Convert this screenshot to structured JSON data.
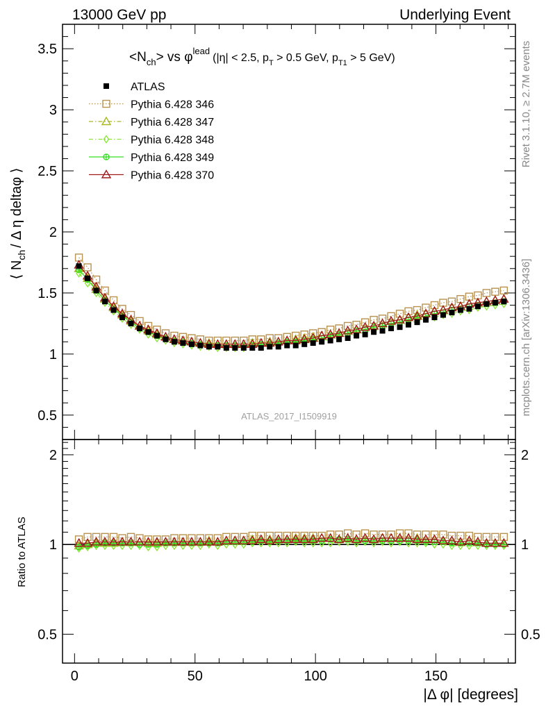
{
  "header": {
    "left": "13000 GeV pp",
    "right": "Underlying Event"
  },
  "side_labels": {
    "rivet": "Rivet 3.1.10, ≥ 2.7M events",
    "mcplots": "mcplots.cern.ch [arXiv:1306.3436]"
  },
  "colors": {
    "ATLAS": "#000000",
    "Pythia 6.428 346": "#b8924e",
    "Pythia 6.428 347": "#a8b820",
    "Pythia 6.428 348": "#8fe63a",
    "Pythia 6.428 349": "#33dd22",
    "Pythia 6.428 370": "#a01a1a"
  },
  "chart_data": {
    "type": "scatter",
    "title_parts": {
      "main": "<N",
      "main_sub": "ch",
      "vs": "> vs φ",
      "vs_sup": "lead",
      "cuts_1": "(|η| < 2.5, p",
      "cuts_1_sub": "T",
      "cuts_2": " > 0.5 GeV, p",
      "cuts_2_sub": "T1",
      "cuts_3": " > 5 GeV)"
    },
    "watermark": "ATLAS_2017_I1509919",
    "xlabel": "|Δ φ| [degrees]",
    "ylabel_parts": {
      "a": "⟨ N",
      "a_sub": "ch",
      "b": "/ Δ η deltaφ ⟩"
    },
    "ratio_ylabel": "Ratio to ATLAS",
    "xlim": [
      -5,
      183
    ],
    "ylim": [
      0.3,
      3.7
    ],
    "ratio_ylim": [
      0.4,
      2.25
    ],
    "x_ticks": [
      "0",
      "50",
      "100",
      "150"
    ],
    "y_ticks": [
      "0.5",
      "1",
      "1.5",
      "2",
      "2.5",
      "3",
      "3.5"
    ],
    "ratio_ticks": [
      "0.5",
      "1",
      "2"
    ],
    "legend": [
      {
        "name": "ATLAS",
        "marker": "square-filled",
        "line": "none"
      },
      {
        "name": "Pythia 6.428 346",
        "marker": "square-open",
        "line": "dotted"
      },
      {
        "name": "Pythia 6.428 347",
        "marker": "triangle-open",
        "line": "dashdot"
      },
      {
        "name": "Pythia 6.428 348",
        "marker": "diamond-open",
        "line": "dashdot"
      },
      {
        "name": "Pythia 6.428 349",
        "marker": "cross-circle",
        "line": "solid"
      },
      {
        "name": "Pythia 6.428 370",
        "marker": "triangle-open",
        "line": "solid"
      }
    ],
    "x": [
      1.8,
      5.4,
      9.0,
      12.6,
      16.2,
      19.8,
      23.4,
      27.0,
      30.6,
      34.2,
      37.8,
      41.4,
      45.0,
      48.6,
      52.2,
      55.8,
      59.4,
      63.0,
      66.6,
      70.2,
      73.8,
      77.4,
      81.0,
      84.6,
      88.2,
      91.8,
      95.4,
      99.0,
      102.6,
      106.2,
      109.8,
      113.4,
      117.0,
      120.6,
      124.2,
      127.8,
      131.4,
      135.0,
      138.6,
      142.2,
      145.8,
      149.4,
      153.0,
      156.6,
      160.2,
      163.8,
      167.4,
      171.0,
      174.6,
      178.2
    ],
    "series": [
      {
        "name": "ATLAS",
        "values": [
          1.72,
          1.62,
          1.52,
          1.43,
          1.36,
          1.3,
          1.25,
          1.21,
          1.18,
          1.15,
          1.12,
          1.1,
          1.09,
          1.08,
          1.07,
          1.06,
          1.06,
          1.05,
          1.05,
          1.05,
          1.05,
          1.05,
          1.06,
          1.06,
          1.07,
          1.07,
          1.08,
          1.09,
          1.1,
          1.11,
          1.12,
          1.13,
          1.15,
          1.16,
          1.18,
          1.19,
          1.21,
          1.22,
          1.24,
          1.26,
          1.28,
          1.3,
          1.32,
          1.34,
          1.36,
          1.37,
          1.39,
          1.41,
          1.42,
          1.43
        ]
      },
      {
        "name": "Pythia 6.428 346",
        "values": [
          1.79,
          1.71,
          1.61,
          1.52,
          1.44,
          1.37,
          1.32,
          1.27,
          1.23,
          1.2,
          1.17,
          1.15,
          1.14,
          1.13,
          1.12,
          1.11,
          1.11,
          1.11,
          1.11,
          1.11,
          1.12,
          1.12,
          1.13,
          1.13,
          1.14,
          1.15,
          1.16,
          1.17,
          1.18,
          1.2,
          1.21,
          1.23,
          1.24,
          1.26,
          1.28,
          1.29,
          1.31,
          1.33,
          1.35,
          1.36,
          1.38,
          1.4,
          1.42,
          1.43,
          1.45,
          1.47,
          1.48,
          1.5,
          1.51,
          1.52
        ]
      },
      {
        "name": "Pythia 6.428 347",
        "values": [
          1.7,
          1.62,
          1.53,
          1.45,
          1.38,
          1.32,
          1.27,
          1.23,
          1.19,
          1.16,
          1.14,
          1.12,
          1.11,
          1.1,
          1.09,
          1.09,
          1.08,
          1.08,
          1.08,
          1.08,
          1.09,
          1.09,
          1.1,
          1.1,
          1.11,
          1.12,
          1.13,
          1.14,
          1.15,
          1.16,
          1.17,
          1.19,
          1.2,
          1.22,
          1.23,
          1.25,
          1.27,
          1.28,
          1.3,
          1.32,
          1.33,
          1.35,
          1.36,
          1.38,
          1.39,
          1.41,
          1.42,
          1.43,
          1.44,
          1.45
        ]
      },
      {
        "name": "Pythia 6.428 348",
        "values": [
          1.66,
          1.58,
          1.5,
          1.42,
          1.35,
          1.29,
          1.24,
          1.2,
          1.16,
          1.13,
          1.11,
          1.09,
          1.08,
          1.07,
          1.06,
          1.06,
          1.05,
          1.05,
          1.05,
          1.05,
          1.06,
          1.06,
          1.07,
          1.07,
          1.08,
          1.09,
          1.09,
          1.1,
          1.11,
          1.12,
          1.14,
          1.15,
          1.16,
          1.18,
          1.19,
          1.21,
          1.22,
          1.24,
          1.25,
          1.27,
          1.29,
          1.3,
          1.32,
          1.33,
          1.35,
          1.36,
          1.38,
          1.39,
          1.4,
          1.41
        ]
      },
      {
        "name": "Pythia 6.428 349",
        "values": [
          1.69,
          1.61,
          1.52,
          1.44,
          1.37,
          1.31,
          1.26,
          1.21,
          1.18,
          1.15,
          1.13,
          1.11,
          1.1,
          1.09,
          1.08,
          1.07,
          1.07,
          1.07,
          1.07,
          1.07,
          1.07,
          1.08,
          1.08,
          1.09,
          1.1,
          1.1,
          1.11,
          1.12,
          1.13,
          1.15,
          1.16,
          1.17,
          1.19,
          1.2,
          1.22,
          1.23,
          1.25,
          1.26,
          1.28,
          1.3,
          1.31,
          1.33,
          1.34,
          1.36,
          1.37,
          1.39,
          1.4,
          1.41,
          1.42,
          1.43
        ]
      },
      {
        "name": "Pythia 6.428 370",
        "values": [
          1.73,
          1.64,
          1.55,
          1.46,
          1.39,
          1.33,
          1.28,
          1.23,
          1.2,
          1.17,
          1.14,
          1.12,
          1.11,
          1.1,
          1.09,
          1.08,
          1.08,
          1.08,
          1.08,
          1.08,
          1.08,
          1.09,
          1.09,
          1.1,
          1.11,
          1.11,
          1.12,
          1.13,
          1.15,
          1.16,
          1.17,
          1.19,
          1.2,
          1.22,
          1.23,
          1.25,
          1.27,
          1.28,
          1.3,
          1.31,
          1.33,
          1.35,
          1.36,
          1.38,
          1.39,
          1.41,
          1.42,
          1.43,
          1.44,
          1.45
        ]
      }
    ],
    "ratio_series": [
      {
        "name": "Pythia 6.428 346",
        "values": [
          1.04,
          1.06,
          1.06,
          1.06,
          1.06,
          1.05,
          1.06,
          1.05,
          1.04,
          1.04,
          1.04,
          1.05,
          1.05,
          1.05,
          1.05,
          1.05,
          1.05,
          1.06,
          1.06,
          1.06,
          1.07,
          1.07,
          1.07,
          1.07,
          1.07,
          1.07,
          1.07,
          1.07,
          1.07,
          1.08,
          1.08,
          1.09,
          1.08,
          1.09,
          1.08,
          1.08,
          1.08,
          1.09,
          1.09,
          1.08,
          1.08,
          1.08,
          1.08,
          1.07,
          1.07,
          1.07,
          1.06,
          1.06,
          1.06,
          1.06
        ]
      },
      {
        "name": "Pythia 6.428 347",
        "values": [
          0.99,
          1.0,
          1.01,
          1.01,
          1.01,
          1.02,
          1.02,
          1.02,
          1.01,
          1.01,
          1.02,
          1.02,
          1.02,
          1.02,
          1.02,
          1.03,
          1.02,
          1.03,
          1.03,
          1.03,
          1.04,
          1.04,
          1.04,
          1.04,
          1.04,
          1.05,
          1.05,
          1.05,
          1.05,
          1.05,
          1.04,
          1.05,
          1.04,
          1.05,
          1.04,
          1.05,
          1.05,
          1.05,
          1.05,
          1.05,
          1.04,
          1.04,
          1.03,
          1.03,
          1.02,
          1.03,
          1.02,
          1.01,
          1.01,
          1.01
        ]
      },
      {
        "name": "Pythia 6.428 348",
        "values": [
          0.97,
          0.98,
          0.99,
          0.99,
          0.99,
          0.99,
          0.99,
          0.99,
          0.98,
          0.98,
          0.99,
          0.99,
          0.99,
          0.99,
          0.99,
          1.0,
          0.99,
          1.0,
          1.0,
          1.0,
          1.01,
          1.01,
          1.01,
          1.01,
          1.01,
          1.02,
          1.01,
          1.01,
          1.01,
          1.01,
          1.02,
          1.02,
          1.01,
          1.02,
          1.01,
          1.02,
          1.01,
          1.02,
          1.01,
          1.01,
          1.01,
          1.0,
          1.0,
          0.99,
          0.99,
          0.99,
          0.99,
          0.99,
          0.99,
          0.99
        ]
      },
      {
        "name": "Pythia 6.428 349",
        "values": [
          0.98,
          0.99,
          1.0,
          1.01,
          1.01,
          1.01,
          1.01,
          1.0,
          1.0,
          1.0,
          1.01,
          1.01,
          1.01,
          1.01,
          1.01,
          1.01,
          1.01,
          1.02,
          1.02,
          1.02,
          1.02,
          1.03,
          1.02,
          1.03,
          1.03,
          1.03,
          1.03,
          1.03,
          1.03,
          1.04,
          1.04,
          1.04,
          1.03,
          1.03,
          1.03,
          1.03,
          1.03,
          1.03,
          1.03,
          1.03,
          1.02,
          1.02,
          1.02,
          1.01,
          1.01,
          1.01,
          1.01,
          1.0,
          1.0,
          1.0
        ]
      },
      {
        "name": "Pythia 6.428 370",
        "values": [
          1.01,
          1.01,
          1.02,
          1.02,
          1.02,
          1.02,
          1.02,
          1.02,
          1.02,
          1.02,
          1.02,
          1.02,
          1.02,
          1.02,
          1.02,
          1.02,
          1.02,
          1.03,
          1.03,
          1.03,
          1.03,
          1.04,
          1.03,
          1.04,
          1.04,
          1.04,
          1.04,
          1.04,
          1.05,
          1.05,
          1.04,
          1.05,
          1.04,
          1.05,
          1.04,
          1.05,
          1.05,
          1.05,
          1.05,
          1.04,
          1.04,
          1.04,
          1.03,
          1.03,
          1.02,
          1.03,
          1.02,
          1.01,
          1.01,
          1.01
        ]
      }
    ]
  }
}
